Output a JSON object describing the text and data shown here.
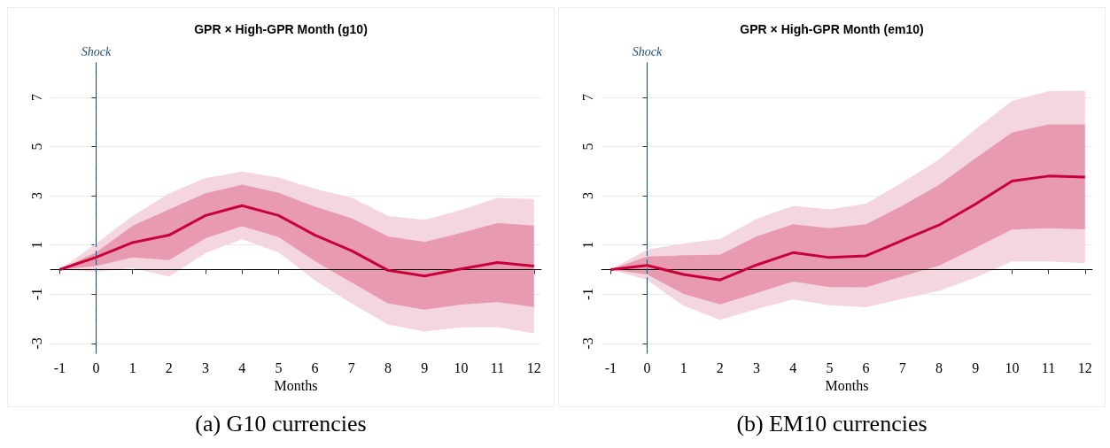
{
  "chart_data": [
    {
      "type": "line",
      "title": "GPR × High-GPR Month (g10)",
      "xlabel": "Months",
      "x": [
        -1,
        0,
        1,
        2,
        3,
        4,
        5,
        6,
        7,
        8,
        9,
        10,
        11,
        12
      ],
      "xlim": [
        -1.25,
        12.2
      ],
      "xticks": [
        -1,
        0,
        1,
        2,
        3,
        4,
        5,
        6,
        7,
        8,
        9,
        10,
        11,
        12
      ],
      "ylim": [
        -3.4,
        8.4
      ],
      "yticks": [
        -3,
        -1,
        1,
        3,
        5,
        7
      ],
      "grid": "y",
      "series": [
        {
          "color": "#f4d6de",
          "values": [
            null,
            null,
            null,
            null,
            null,
            null,
            null,
            null,
            null,
            null,
            null,
            null,
            null,
            null
          ],
          "lower": [
            0,
            -0.09,
            0.06,
            -0.29,
            0.67,
            1.23,
            0.7,
            -0.44,
            -1.38,
            -2.23,
            -2.52,
            -2.35,
            -2.34,
            -2.59
          ],
          "upper": [
            0,
            1.06,
            2.18,
            3.09,
            3.72,
            3.98,
            3.74,
            3.28,
            2.92,
            2.18,
            2.02,
            2.42,
            2.91,
            2.87
          ]
        },
        {
          "color": "#c8003a",
          "values": [
            0,
            0.5,
            1.1,
            1.4,
            2.2,
            2.6,
            2.2,
            1.4,
            0.77,
            -0.03,
            -0.26,
            0.03,
            0.29,
            0.14
          ],
          "lower": [
            0,
            0.14,
            0.49,
            0.39,
            1.28,
            1.76,
            1.32,
            0.34,
            -0.52,
            -1.38,
            -1.63,
            -1.42,
            -1.32,
            -1.52
          ],
          "upper": [
            0,
            0.7,
            1.78,
            2.45,
            3.1,
            3.45,
            3.12,
            2.55,
            2.09,
            1.35,
            1.12,
            1.49,
            1.89,
            1.79
          ]
        }
      ],
      "ref_lines": [
        {
          "axis": "y",
          "value": 0,
          "color": "#000000",
          "line_style": "solid"
        },
        {
          "axis": "x",
          "value": 0,
          "label": "Shock",
          "color": "#1f4e79",
          "line_style": "dashed"
        }
      ],
      "annotations": [
        "(a) G10 currencies"
      ]
    },
    {
      "type": "line",
      "title": "GPR × High-GPR Month (em10)",
      "xlabel": "Months",
      "x": [
        -1,
        0,
        1,
        2,
        3,
        4,
        5,
        6,
        7,
        8,
        9,
        10,
        11,
        12
      ],
      "xlim": [
        -1.25,
        12.2
      ],
      "xticks": [
        -1,
        0,
        1,
        2,
        3,
        4,
        5,
        6,
        7,
        8,
        9,
        10,
        11,
        12
      ],
      "ylim": [
        -3.4,
        8.4
      ],
      "yticks": [
        -3,
        -1,
        1,
        3,
        5,
        7
      ],
      "grid": "y",
      "series": [
        {
          "color": "#f4d6de",
          "values": [
            null,
            null,
            null,
            null,
            null,
            null,
            null,
            null,
            null,
            null,
            null,
            null,
            null,
            null
          ],
          "lower": [
            0,
            -0.42,
            -1.47,
            -2.04,
            -1.6,
            -1.21,
            -1.45,
            -1.53,
            -1.19,
            -0.86,
            -0.32,
            0.33,
            0.33,
            0.26
          ],
          "upper": [
            0,
            0.81,
            1.06,
            1.25,
            2.06,
            2.59,
            2.45,
            2.68,
            3.54,
            4.47,
            5.7,
            6.85,
            7.25,
            7.27
          ]
        },
        {
          "color": "#c8003a",
          "values": [
            0,
            0.17,
            -0.2,
            -0.42,
            0.19,
            0.69,
            0.49,
            0.56,
            1.19,
            1.81,
            2.66,
            3.6,
            3.8,
            3.76
          ],
          "lower": [
            0,
            -0.2,
            -0.99,
            -1.41,
            -0.95,
            -0.49,
            -0.71,
            -0.72,
            -0.27,
            0.16,
            0.88,
            1.63,
            1.68,
            1.64
          ],
          "upper": [
            0,
            0.53,
            0.58,
            0.6,
            1.35,
            1.84,
            1.68,
            1.84,
            2.6,
            3.44,
            4.52,
            5.57,
            5.9,
            5.9
          ]
        }
      ],
      "ref_lines": [
        {
          "axis": "y",
          "value": 0,
          "color": "#000000",
          "line_style": "solid"
        },
        {
          "axis": "x",
          "value": 0,
          "label": "Shock",
          "color": "#1f4e79",
          "line_style": "dashed"
        }
      ],
      "annotations": [
        "(b) EM10 currencies"
      ]
    }
  ]
}
